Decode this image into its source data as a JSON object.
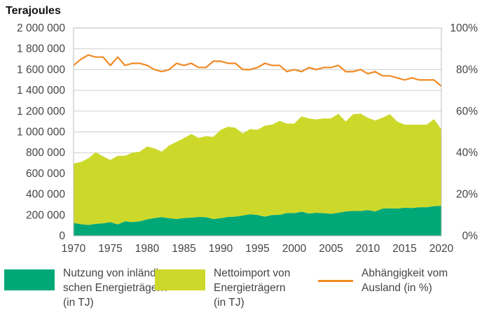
{
  "chart_data": {
    "type": "area",
    "title": "",
    "ylabel_left": "Terajoules",
    "ylim_left": [
      0,
      2000000
    ],
    "yticks_left": [
      "0",
      "200 000",
      "400 000",
      "600 000",
      "800 000",
      "1 000 000",
      "1 200 000",
      "1 400 000",
      "1 600 000",
      "1 800 000",
      "2 000 000"
    ],
    "ylim_right": [
      0,
      100
    ],
    "yticks_right": [
      "0%",
      "20%",
      "40%",
      "60%",
      "80%",
      "100%"
    ],
    "xlim": [
      1970,
      2020
    ],
    "xticks": [
      "1970",
      "1975",
      "1980",
      "1985",
      "1990",
      "1995",
      "2000",
      "2005",
      "2010",
      "2015",
      "2020"
    ],
    "grid": true,
    "legend_position": "bottom",
    "x": [
      1970,
      1971,
      1972,
      1973,
      1974,
      1975,
      1976,
      1977,
      1978,
      1979,
      1980,
      1981,
      1982,
      1983,
      1984,
      1985,
      1986,
      1987,
      1988,
      1989,
      1990,
      1991,
      1992,
      1993,
      1994,
      1995,
      1996,
      1997,
      1998,
      1999,
      2000,
      2001,
      2002,
      2003,
      2004,
      2005,
      2006,
      2007,
      2008,
      2009,
      2010,
      2011,
      2012,
      2013,
      2014,
      2015,
      2016,
      2017,
      2018,
      2019,
      2020
    ],
    "series": [
      {
        "name": "Nutzung von inländi-\nschen Energieträgern\n(in TJ)",
        "axis": "left",
        "kind": "area",
        "stack": true,
        "color": "#00a878",
        "values": [
          125000,
          112000,
          105000,
          115000,
          120000,
          132000,
          110000,
          140000,
          132000,
          140000,
          158000,
          172000,
          180000,
          170000,
          162000,
          172000,
          175000,
          182000,
          180000,
          162000,
          170000,
          182000,
          185000,
          195000,
          208000,
          200000,
          185000,
          200000,
          202000,
          220000,
          218000,
          232000,
          215000,
          222000,
          218000,
          212000,
          222000,
          235000,
          240000,
          238000,
          248000,
          235000,
          262000,
          265000,
          262000,
          270000,
          268000,
          275000,
          275000,
          285000,
          290000
        ]
      },
      {
        "name": "Nettoimport von\nEnergieträgern\n(in TJ)",
        "axis": "left",
        "kind": "area",
        "stack": true,
        "color": "#cdd92a",
        "values": [
          570000,
          598000,
          640000,
          690000,
          645000,
          598000,
          660000,
          630000,
          668000,
          670000,
          702000,
          670000,
          630000,
          700000,
          742000,
          768000,
          805000,
          760000,
          780000,
          790000,
          850000,
          868000,
          855000,
          790000,
          820000,
          820000,
          875000,
          870000,
          905000,
          860000,
          862000,
          918000,
          915000,
          898000,
          912000,
          918000,
          952000,
          865000,
          930000,
          938000,
          888000,
          875000,
          875000,
          905000,
          838000,
          800000,
          802000,
          795000,
          795000,
          838000,
          735000
        ]
      },
      {
        "name": "Abhängigkeit vom\nAusland (in %)",
        "axis": "right",
        "kind": "line",
        "color": "#f08a24",
        "values": [
          82,
          85,
          87,
          86,
          86,
          82,
          86,
          82,
          83,
          83,
          82,
          80,
          79,
          80,
          83,
          82,
          83,
          81,
          81,
          84,
          84,
          83,
          83,
          80,
          80,
          81,
          83,
          82,
          82,
          79,
          80,
          79,
          81,
          80,
          81,
          81,
          82,
          79,
          79,
          80,
          78,
          79,
          77,
          77,
          76,
          75,
          76,
          75,
          75,
          75,
          72
        ]
      }
    ]
  }
}
